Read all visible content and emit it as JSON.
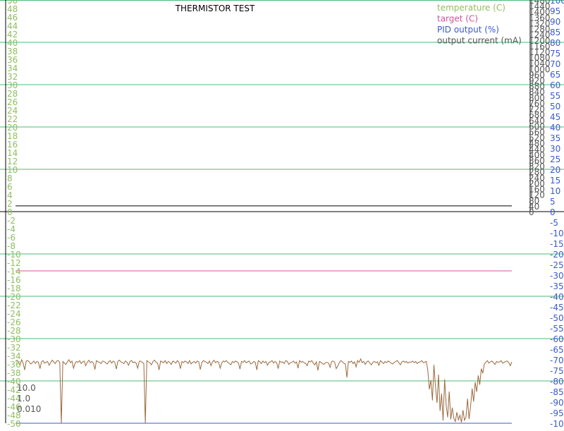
{
  "chart_data": {
    "type": "line",
    "title": "THERMISTOR TEST",
    "legend": [
      {
        "label": "temperature (C)",
        "color": "#8fbf5f"
      },
      {
        "label": "target (C)",
        "color": "#d0559a"
      },
      {
        "label": "PID output (%)",
        "color": "#3a5ad0"
      },
      {
        "label": "output current (mA)",
        "color": "#555555"
      }
    ],
    "legend_position": "top-right",
    "grid": true,
    "grid_color": "#4cbb7a",
    "axes": {
      "temperature": {
        "side": "left",
        "range": [
          -50,
          50
        ],
        "ticks_step": 2,
        "color": "#8fbf5f"
      },
      "current": {
        "side": "right-inner",
        "range": [
          0,
          1480
        ],
        "ticks_step": 40,
        "color": "#555555"
      },
      "pid": {
        "side": "right-outer",
        "range": [
          -100,
          100
        ],
        "ticks_step": 5,
        "color": "#3a5ad0"
      }
    },
    "gain_labels": [
      "10.0",
      "1.0",
      "0.010"
    ],
    "series": [
      {
        "name": "target (C)",
        "color": "#d0559a",
        "axis": "temperature",
        "values": [
          -14,
          -14
        ]
      },
      {
        "name": "PID output (%)",
        "color": "#3a5ad0",
        "axis": "pid",
        "values": [
          -100,
          -100
        ]
      },
      {
        "name": "output current (mA)",
        "color": "#000000",
        "axis": "current",
        "values": [
          40,
          40
        ]
      },
      {
        "name": "temperature (C)",
        "color": "#9a6a3e",
        "axis": "temperature",
        "values": [
          -35.4,
          -35.1,
          -35.6,
          -36.2,
          -35.0,
          -35.8,
          -37.4,
          -35.3,
          -35.2,
          -35.5,
          -36.0,
          -35.7,
          -35.3,
          -35.9,
          -35.4,
          -35.6,
          -37.1,
          -35.5,
          -35.2,
          -35.8,
          -35.6,
          -35.4,
          -36.3,
          -35.7,
          -35.1,
          -35.5,
          -35.9,
          -35.3,
          -35.2,
          -35.6,
          -50.0,
          -35.4,
          -35.8,
          -36.1,
          -35.5,
          -35.0,
          -35.7,
          -35.3,
          -37.0,
          -35.8,
          -35.4,
          -35.6,
          -35.2,
          -35.9,
          -35.5,
          -35.3,
          -36.4,
          -35.6,
          -35.1,
          -35.7,
          -35.4,
          -35.8,
          -37.3,
          -35.2,
          -35.5,
          -35.6,
          -35.9,
          -35.3,
          -35.4,
          -35.7,
          -36.0,
          -35.5,
          -35.2,
          -35.8,
          -35.3,
          -35.6,
          -37.2,
          -35.4,
          -35.1,
          -35.5,
          -35.7,
          -35.9,
          -35.3,
          -35.6,
          -36.3,
          -35.4,
          -35.2,
          -35.7,
          -35.5,
          -35.8,
          -37.0,
          -35.4,
          -35.3,
          -35.6,
          -35.9,
          -50.0,
          -35.2,
          -35.5,
          -35.7,
          -36.2,
          -35.4,
          -35.1,
          -35.6,
          -35.8,
          -37.4,
          -35.3,
          -35.5,
          -35.7,
          -35.2,
          -35.9,
          -35.4,
          -35.6,
          -36.1,
          -35.3,
          -35.5,
          -35.8,
          -35.2,
          -35.6,
          -37.1,
          -35.4,
          -35.7,
          -35.3,
          -35.5,
          -35.9,
          -35.2,
          -36.0,
          -35.6,
          -35.4,
          -35.8,
          -35.3,
          -35.5,
          -37.3,
          -35.7,
          -35.2,
          -35.4,
          -35.6,
          -35.9,
          -35.3,
          -36.4,
          -35.5,
          -35.1,
          -35.7,
          -35.4,
          -35.6,
          -37.0,
          -35.8,
          -35.3,
          -35.5,
          -35.2,
          -35.6,
          -35.9,
          -36.2,
          -35.4,
          -35.7,
          -35.3,
          -35.5,
          -35.8,
          -37.2,
          -35.4,
          -35.6,
          -35.2,
          -35.7,
          -35.5,
          -35.3,
          -36.0,
          -35.8,
          -35.4,
          -35.6,
          -37.4,
          -35.2,
          -35.5,
          -35.9,
          -35.3,
          -35.7,
          -35.4,
          -36.3,
          -35.6,
          -35.5,
          -35.2,
          -35.8,
          -35.4,
          -35.7,
          -37.1,
          -35.3,
          -35.6,
          -35.5,
          -35.9,
          -35.2,
          -35.4,
          -36.1,
          -35.7,
          -35.6,
          -35.3,
          -35.8,
          -35.5,
          -37.0,
          -35.2,
          -35.6,
          -35.4,
          -35.7,
          -35.9,
          -36.4,
          -35.3,
          -35.5,
          -35.2,
          -35.8,
          -36.2,
          -35.5,
          -37.5,
          -35.4,
          -35.6,
          -35.9,
          -36.1,
          -35.7,
          -35.6,
          -35.8,
          -36.8,
          -35.4,
          -35.3,
          -35.6,
          -37.1,
          -36.5,
          -35.7,
          -35.2,
          -35.5,
          -35.8,
          -36.0,
          -39.2,
          -35.4,
          -35.6,
          -35.3,
          -35.9,
          -35.5,
          -36.7,
          -35.2,
          -35.6,
          -34.8,
          -35.7,
          -35.4,
          -36.1,
          -35.5,
          -35.3,
          -35.8,
          -36.2,
          -35.6,
          -35.4,
          -35.7,
          -35.5,
          -36.3,
          -35.2,
          -35.6,
          -35.9,
          -35.4,
          -35.7,
          -35.3,
          -35.5,
          -35.8,
          -36.0,
          -35.6,
          -35.4,
          -35.2,
          -35.7,
          -36.2,
          -35.5,
          -35.3,
          -35.6,
          -35.4,
          -35.8,
          -35.5,
          -35.6,
          -35.3,
          -35.7,
          -35.4,
          -35.9,
          -35.6,
          -35.5,
          -35.2,
          -35.7,
          -35.6,
          -35.4,
          -37.6,
          -42.0,
          -39.8,
          -44.6,
          -36.2,
          -41.4,
          -45.2,
          -38.5,
          -47.1,
          -43.0,
          -49.4,
          -39.6,
          -45.8,
          -48.6,
          -42.5,
          -49.1,
          -46.3,
          -48.8,
          -49.6,
          -47.4,
          -49.2,
          -48.1,
          -49.8,
          -46.9,
          -49.3,
          -48.5,
          -44.2,
          -49.0,
          -46.0,
          -41.8,
          -44.9,
          -40.3,
          -42.6,
          -38.7,
          -40.9,
          -37.1,
          -38.2,
          -36.0,
          -35.6,
          -35.2,
          -35.8,
          -35.5,
          -35.3,
          -35.7,
          -36.1,
          -35.4,
          -35.6,
          -35.5,
          -35.2,
          -35.8,
          -35.6,
          -35.4,
          -35.3,
          -35.7,
          -36.4,
          -35.5
        ]
      }
    ]
  }
}
